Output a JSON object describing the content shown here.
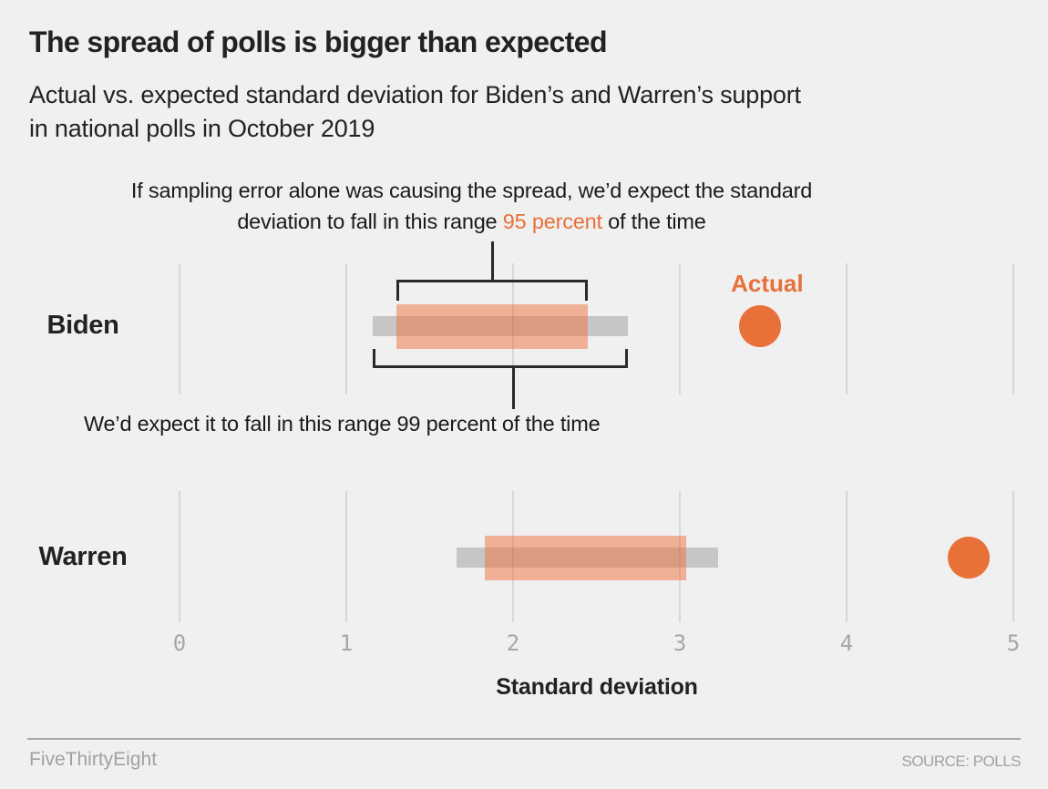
{
  "header": {
    "title": "The spread of polls is bigger than expected",
    "subtitle_line1": "Actual vs. expected standard deviation for Biden’s and Warren’s support",
    "subtitle_line2": "in national polls in October 2019"
  },
  "annotations": {
    "ci95_line1": "If sampling error alone was causing the spread, we’d expect the standard",
    "ci95_line2_prefix": "deviation to fall in this range ",
    "ci95_highlight": "95 percent",
    "ci95_suffix": " of the time",
    "ci99": "We’d expect it to fall in this range 99 percent of the time",
    "actual_label": "Actual"
  },
  "chart_data": {
    "type": "bar",
    "subtype": "range-band-with-dot",
    "xlabel": "Standard deviation",
    "xlim": [
      0,
      5
    ],
    "x_ticks": [
      "0",
      "1",
      "2",
      "3",
      "4",
      "5"
    ],
    "grid": "vertical",
    "rows": [
      {
        "label": "Biden",
        "expected_95_range": [
          1.3,
          2.45
        ],
        "expected_99_range": [
          1.16,
          2.69
        ],
        "actual": 3.48
      },
      {
        "label": "Warren",
        "expected_95_range": [
          1.83,
          3.04
        ],
        "expected_99_range": [
          1.66,
          3.23
        ],
        "actual": 4.73
      }
    ]
  },
  "footer": {
    "brand": "FiveThirtyEight",
    "source": "SOURCE: POLLS"
  },
  "colors": {
    "accent": "#e8713a",
    "band_95": "#f0703c",
    "band_99": "#c6c6c6",
    "bracket": "#2a2a2a",
    "background": "#f0f0f0"
  }
}
